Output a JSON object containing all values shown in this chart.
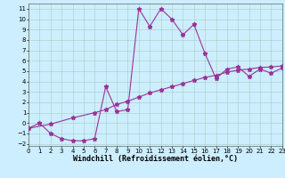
{
  "x_line1": [
    0,
    1,
    2,
    3,
    4,
    5,
    6,
    7,
    8,
    9,
    10,
    11,
    12,
    13,
    14,
    15,
    16,
    17,
    18,
    19,
    20,
    21,
    22,
    23
  ],
  "y_line1": [
    -0.5,
    0.0,
    -1.0,
    -1.5,
    -1.7,
    -1.7,
    -1.5,
    3.5,
    1.1,
    1.3,
    11.0,
    9.3,
    11.0,
    10.0,
    8.5,
    9.5,
    6.7,
    4.3,
    5.2,
    5.4,
    4.5,
    5.2,
    4.8,
    5.3
  ],
  "x_line2": [
    0,
    2,
    4,
    6,
    7,
    8,
    9,
    10,
    11,
    12,
    13,
    14,
    15,
    16,
    17,
    18,
    19,
    20,
    21,
    22,
    23
  ],
  "y_line2": [
    -0.5,
    -0.1,
    0.5,
    1.0,
    1.3,
    1.8,
    2.1,
    2.5,
    2.9,
    3.2,
    3.5,
    3.8,
    4.1,
    4.4,
    4.6,
    4.9,
    5.1,
    5.2,
    5.35,
    5.4,
    5.5
  ],
  "line_color": "#993399",
  "bg_color": "#cceeff",
  "grid_color": "#aaccbb",
  "xlabel": "Windchill (Refroidissement éolien,°C)",
  "xlim": [
    0,
    23
  ],
  "ylim": [
    -2.2,
    11.5
  ],
  "yticks": [
    -2,
    -1,
    0,
    1,
    2,
    3,
    4,
    5,
    6,
    7,
    8,
    9,
    10,
    11
  ],
  "xticks": [
    0,
    1,
    2,
    3,
    4,
    5,
    6,
    7,
    8,
    9,
    10,
    11,
    12,
    13,
    14,
    15,
    16,
    17,
    18,
    19,
    20,
    21,
    22,
    23
  ],
  "marker": "*",
  "markersize": 3.5,
  "linewidth": 0.8,
  "xlabel_fontsize": 6,
  "tick_fontsize": 5
}
